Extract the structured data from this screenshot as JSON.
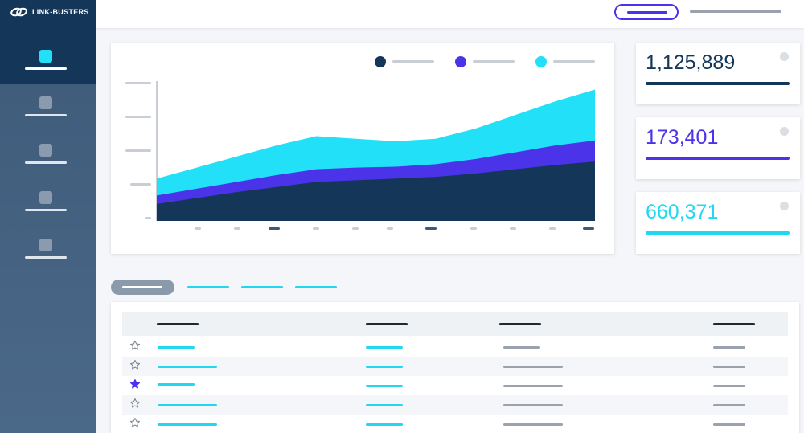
{
  "app": {
    "logo_text": "LINK-BUSTERS"
  },
  "sidebar": {
    "items": [
      {
        "icon": "dashboard-icon",
        "active": true
      },
      {
        "icon": "nav-icon",
        "active": false
      },
      {
        "icon": "nav-icon",
        "active": false
      },
      {
        "icon": "nav-icon",
        "active": false
      },
      {
        "icon": "nav-icon",
        "active": false
      }
    ]
  },
  "stats": [
    {
      "value": "1,125,889",
      "color": "#143659"
    },
    {
      "value": "173,401",
      "color": "#4a33e8"
    },
    {
      "value": "660,371",
      "color": "#22d8f0"
    }
  ],
  "colors": {
    "navy": "#143659",
    "purple": "#4a33e8",
    "cyan": "#22e0f7",
    "sidebar": "#3f5a79"
  },
  "chart_data": {
    "type": "area",
    "stacked": true,
    "x": [
      0,
      1,
      2,
      3,
      4,
      5,
      6,
      7,
      8,
      9,
      10,
      11
    ],
    "series": [
      {
        "color": "#143659",
        "values": [
          20,
          27,
          34,
          40,
          46,
          48,
          50,
          52,
          56,
          61,
          66,
          70
        ]
      },
      {
        "color": "#4a33e8",
        "values": [
          10,
          11,
          12,
          14,
          15,
          15,
          14,
          15,
          17,
          20,
          23,
          25
        ]
      },
      {
        "color": "#22e0f7",
        "values": [
          20,
          25,
          30,
          35,
          39,
          34,
          30,
          30,
          36,
          44,
          52,
          60
        ]
      }
    ],
    "ylim": [
      0,
      165
    ],
    "grid": false,
    "legend": "top-right"
  },
  "table": {
    "starred": [
      false,
      false,
      true,
      false,
      false
    ]
  }
}
